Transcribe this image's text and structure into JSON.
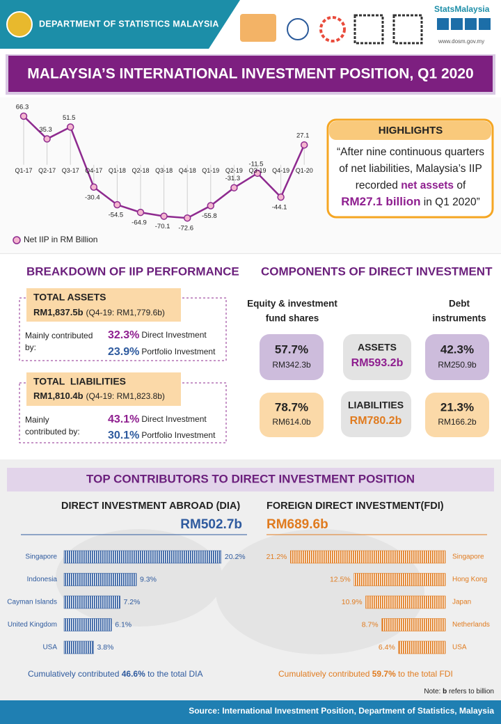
{
  "header": {
    "organization": "DEPARTMENT OF STATISTICS MALAYSIA",
    "brand": "StatsMalaysia",
    "website": "www.dosm.gov.my"
  },
  "title": "MALAYSIA’S INTERNATIONAL INVESTMENT POSITION, Q1 2020",
  "highlights": {
    "heading": "HIGHLIGHTS",
    "lines": [
      [
        "“After nine continuous quarters"
      ],
      [
        "of net liabilities, Malaysia’s IIP"
      ],
      [
        "recorded ",
        "net assets",
        " of"
      ],
      [
        "RM27.1 billion",
        " in Q1 2020”"
      ]
    ]
  },
  "breakdown": {
    "title": "BREAKDOWN OF IIP PERFORMANCE",
    "assets": {
      "label": "TOTAL ASSETS",
      "amount": "RM1,837.5b",
      "previous": "(Q4-19: RM1,779.6b)",
      "contributed_by": [
        "Mainly contributed",
        "by:"
      ],
      "items": [
        {
          "share": "32.3%",
          "name": "Direct Investment"
        },
        {
          "share": "23.9%",
          "name": "Portfolio Investment"
        }
      ]
    },
    "liabilities": {
      "label": "TOTAL  LIABILITIES",
      "amount": "RM1,810.4b",
      "previous": "(Q4-19: RM1,823.8b)",
      "contributed_by": [
        "Mainly",
        "contributed by:"
      ],
      "items": [
        {
          "share": "43.1%",
          "name": "Direct Investment"
        },
        {
          "share": "30.1%",
          "name": "Portfolio Investment"
        }
      ]
    }
  },
  "components": {
    "title": "COMPONENTS OF DIRECT INVESTMENT",
    "equity_heading": [
      "Equity & investment",
      "fund shares"
    ],
    "debt_heading": [
      "Debt",
      "instruments"
    ],
    "rows": [
      {
        "label": "ASSETS",
        "total": "RM593.2b",
        "equity_share": "57.7%",
        "equity_amount": "RM342.3b",
        "debt_share": "42.3%",
        "debt_amount": "RM250.9b"
      },
      {
        "label": "LIABILITIES",
        "total": "RM780.2b",
        "equity_share": "78.7%",
        "equity_amount": "RM614.0b",
        "debt_share": "21.3%",
        "debt_amount": "RM166.2b"
      }
    ]
  },
  "contributors": {
    "title": "TOP CONTRIBUTORS TO DIRECT INVESTMENT POSITION",
    "dia_note": [
      "Cumulatively contributed ",
      "46.6%",
      " to the total DIA"
    ],
    "fdi_note": [
      "Cumulatively contributed ",
      "59.7%",
      " to the total FDI"
    ]
  },
  "note": [
    "Note: ",
    "b",
    " refers to billion"
  ],
  "source": "Source: International Investment Position, Department of Statistics, Malaysia",
  "chart_data": [
    {
      "type": "line",
      "categories": [
        "Q1-17",
        "Q2-17",
        "Q3-17",
        "Q4-17",
        "Q1-18",
        "Q2-18",
        "Q3-18",
        "Q4-18",
        "Q1-19",
        "Q2-19",
        "Q3-19",
        "Q4-19",
        "Q1-20"
      ],
      "series": [
        {
          "name": "Net IIP in RM Billion",
          "color": "#8e2a8f",
          "values": [
            66.3,
            35.3,
            51.5,
            -30.4,
            -54.5,
            -64.9,
            -70.1,
            -72.6,
            -55.8,
            -31.3,
            -11.5,
            -44.1,
            27.1
          ]
        }
      ],
      "ylim": [
        -80,
        70
      ]
    },
    {
      "type": "bar",
      "title": "DIRECT INVESTMENT ABROAD (DIA)",
      "subtitle": "RM502.7b",
      "categories": [
        "Singapore",
        "Indonesia",
        "Cayman Islands",
        "United Kingdom",
        "USA"
      ],
      "values": [
        20.2,
        9.3,
        7.2,
        6.1,
        3.8
      ],
      "value_labels": [
        "20.2%",
        "9.3%",
        "7.2%",
        "6.1%",
        "3.8%"
      ],
      "color": "#2e5a9e",
      "xlim": [
        0,
        22
      ]
    },
    {
      "type": "bar",
      "title": "FOREIGN DIRECT INVESTMENT(FDI)",
      "subtitle": "RM689.6b",
      "categories": [
        "Singapore",
        "Hong Kong",
        "Japan",
        "Netherlands",
        "USA"
      ],
      "values": [
        21.2,
        12.5,
        10.9,
        8.7,
        6.4
      ],
      "value_labels": [
        "21.2%",
        "12.5%",
        "10.9%",
        "8.7%",
        "6.4%"
      ],
      "color": "#e07b1f",
      "xlim": [
        0,
        22
      ]
    }
  ]
}
